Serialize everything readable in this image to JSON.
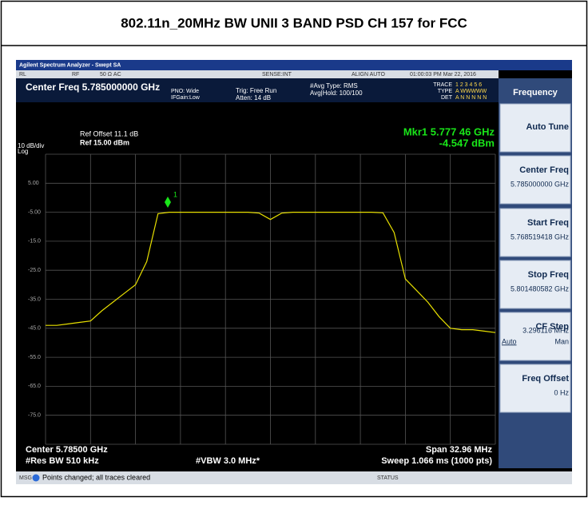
{
  "header": {
    "title": "802.11n_20MHz BW UNII 3 BAND PSD CH 157 for FCC"
  },
  "screen": {
    "window_title": "Agilent Spectrum Analyzer - Swept SA",
    "status_bar": [
      "RL",
      "RF",
      "50 Ω  AC",
      "SENSE:INT",
      "ALIGN AUTO",
      "01:00:03 PM Mar 22, 2016"
    ],
    "center_freq_banner": "Center Freq 5.785000000 GHz",
    "pno": "PNO: Wide",
    "ifgain": "IFGain:Low",
    "trig": "Trig: Free Run",
    "atten": "Atten: 14 dB",
    "avg_type": "#Avg Type: RMS",
    "avg_hold": "Avg|Hold: 100/100",
    "trace_info": [
      "TRACE",
      "TYPE",
      "DET"
    ],
    "trace_flags": [
      "1 2 3 4 5 6",
      "A WWWWW",
      "A N N N N N"
    ],
    "ref_offset": "Ref Offset 11.1 dB",
    "ref_level": "Ref 15.00 dBm",
    "scale": "10 dB/div",
    "scale_type": "Log",
    "marker_freq": "Mkr1 5.777 46 GHz",
    "marker_amp": "-4.547 dBm",
    "marker_label": "1",
    "y_labels": [
      "5.00",
      "-5.00",
      "-15.0",
      "-25.0",
      "-35.0",
      "-45.0",
      "-55.0",
      "-65.0",
      "-75.0"
    ],
    "center": "Center 5.78500 GHz",
    "res_bw": "#Res BW 510 kHz",
    "vbw": "#VBW 3.0 MHz*",
    "span": "Span 32.96 MHz",
    "sweep": "Sweep  1.066 ms (1000 pts)",
    "msg": "MSG",
    "message": "Points changed; all traces cleared",
    "status": "STATUS",
    "trace": {
      "ylim": [
        -85,
        15
      ],
      "values": [
        -44,
        -44,
        -43.5,
        -43,
        -42.5,
        -39,
        -36,
        -33,
        -30,
        -22,
        -5.5,
        -5,
        -5,
        -5,
        -5,
        -5,
        -5,
        -5,
        -5,
        -5.3,
        -7.5,
        -5.3,
        -5,
        -5,
        -5,
        -5,
        -5,
        -5,
        -5,
        -5,
        -5.2,
        -12,
        -28,
        -32,
        -36,
        -41,
        -45,
        -45.5,
        -45.5,
        -46,
        -46.5
      ]
    }
  },
  "menu": {
    "title": "Frequency",
    "buttons": [
      {
        "label": "Auto Tune"
      },
      {
        "label": "Center Freq",
        "value": "5.785000000 GHz"
      },
      {
        "label": "Start Freq",
        "value": "5.768519418 GHz"
      },
      {
        "label": "Stop Freq",
        "value": "5.801480582 GHz"
      },
      {
        "label": "CF Step",
        "value": "3.296116 MHz",
        "options": [
          "Auto",
          "Man"
        ]
      },
      {
        "label": "Freq Offset",
        "value": "0 Hz"
      }
    ]
  }
}
